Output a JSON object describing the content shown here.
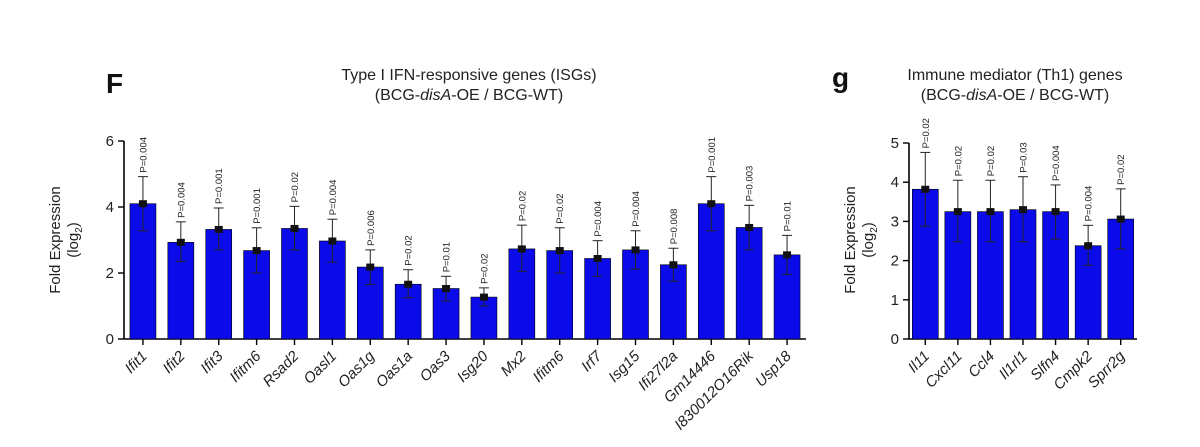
{
  "panels": [
    {
      "letter": "F",
      "title_line1": "Type I IFN-responsive genes (ISGs)",
      "title_line2": {
        "pre": "(BCG-",
        "italic": "disA",
        "post": "-OE / BCG-WT)"
      }
    },
    {
      "letter": "g",
      "title_line1": "Immune mediator (Th1) genes",
      "title_line2": {
        "pre": "(BCG-",
        "italic": "disA",
        "post": "-OE / BCG-WT)"
      }
    }
  ],
  "colors": {
    "bar": "#0b0bea",
    "axis": "#000000"
  },
  "chart_data": [
    {
      "type": "bar",
      "title": "Type I IFN-responsive genes (ISGs) (BCG-disA-OE / BCG-WT)",
      "ylabel": {
        "main": "Fold Expression",
        "sub_pre": "(log",
        "sub_sub": "2",
        "sub_post": ")"
      },
      "ylim": [
        0,
        6
      ],
      "yticks": [
        0,
        2,
        4,
        6
      ],
      "categories": [
        "Ifit1",
        "Ifit2",
        "Ifit3",
        "Ifitm6",
        "Rsad2",
        "Oasl1",
        "Oas1g",
        "Oas1a",
        "Oas3",
        "Isg20",
        "Mx2",
        "Ifitm6",
        "Irf7",
        "Isg15",
        "Ifi27l2a",
        "Gm14446",
        "I830012O16Rik",
        "Usp18"
      ],
      "values": [
        4.1,
        2.93,
        3.32,
        2.68,
        3.35,
        2.97,
        2.18,
        1.66,
        1.53,
        1.27,
        2.73,
        2.68,
        2.44,
        2.7,
        2.25,
        4.1,
        3.38,
        2.55
      ],
      "error_upper": [
        4.92,
        3.55,
        3.97,
        3.37,
        4.02,
        3.63,
        2.7,
        2.1,
        1.9,
        1.55,
        3.45,
        3.37,
        2.98,
        3.28,
        2.75,
        4.92,
        4.05,
        3.14
      ],
      "error_lower": [
        3.28,
        2.35,
        2.7,
        2.0,
        2.7,
        2.33,
        1.65,
        1.25,
        1.15,
        1.0,
        2.05,
        2.0,
        1.9,
        2.12,
        1.75,
        3.28,
        2.7,
        1.96
      ],
      "pvalues": [
        "P=0.004",
        "P=0.004",
        "P=0.001",
        "P=0.001",
        "P=0.02",
        "P=0.004",
        "P=0.006",
        "P=0.02",
        "P=0.01",
        "P=0.02",
        "P=0.02",
        "P=0.02",
        "P=0.004",
        "P=0.004",
        "P=0.008",
        "P=0.001",
        "P=0.003",
        "P=0.01"
      ],
      "grid": false,
      "legend": "none"
    },
    {
      "type": "bar",
      "title": "Immune mediator (Th1) genes (BCG-disA-OE / BCG-WT)",
      "ylabel": {
        "main": "Fold Expression",
        "sub_pre": "(log",
        "sub_sub": "2",
        "sub_post": ")"
      },
      "ylim": [
        0,
        5
      ],
      "yticks": [
        0,
        1,
        2,
        3,
        4,
        5
      ],
      "categories": [
        "Il11",
        "Cxcl11",
        "Ccl4",
        "Il1rl1",
        "Slfn4",
        "Cmpk2",
        "Sprr2g"
      ],
      "values": [
        3.82,
        3.25,
        3.25,
        3.3,
        3.25,
        2.38,
        3.06
      ],
      "error_upper": [
        4.76,
        4.05,
        4.05,
        4.14,
        3.93,
        2.9,
        3.83
      ],
      "error_lower": [
        2.88,
        2.48,
        2.48,
        2.48,
        2.55,
        1.88,
        2.3
      ],
      "pvalues": [
        "P=0.02",
        "P=0.02",
        "P=0.02",
        "P=0.03",
        "P=0.004",
        "P=0.004",
        "P=0.02"
      ],
      "grid": false,
      "legend": "none"
    }
  ]
}
